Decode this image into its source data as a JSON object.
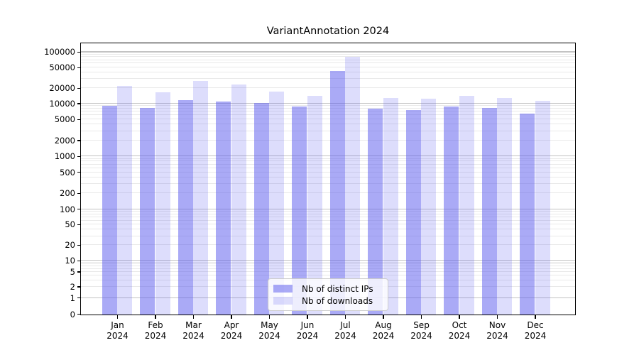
{
  "chart_data": {
    "type": "bar",
    "title": "VariantAnnotation 2024",
    "x_year": "2024",
    "categories": [
      "Jan",
      "Feb",
      "Mar",
      "Apr",
      "May",
      "Jun",
      "Jul",
      "Aug",
      "Sep",
      "Oct",
      "Nov",
      "Dec"
    ],
    "series": [
      {
        "name": "Nb of distinct IPs",
        "color": "rgba(85,85,238,0.5)",
        "values": [
          9300,
          8300,
          11700,
          11300,
          10400,
          8950,
          44000,
          8100,
          7700,
          9000,
          8500,
          6600
        ]
      },
      {
        "name": "Nb of downloads",
        "color": "rgba(85,85,238,0.2)",
        "values": [
          22500,
          17000,
          28000,
          24000,
          17600,
          14300,
          83000,
          13200,
          12600,
          14400,
          13000,
          11600
        ]
      }
    ],
    "y_ticks": [
      100000,
      50000,
      20000,
      10000,
      5000,
      2000,
      1000,
      500,
      200,
      100,
      50,
      20,
      10,
      5,
      2,
      1,
      0
    ],
    "y_scale": "symlog",
    "ylim": [
      0,
      146000
    ],
    "grid": true,
    "legend_position": "lower center"
  },
  "colors": {
    "axis": "#000000",
    "major_grid": "#c3c3c3",
    "minor_grid": "#e9e9e9",
    "background": "#ffffff"
  }
}
